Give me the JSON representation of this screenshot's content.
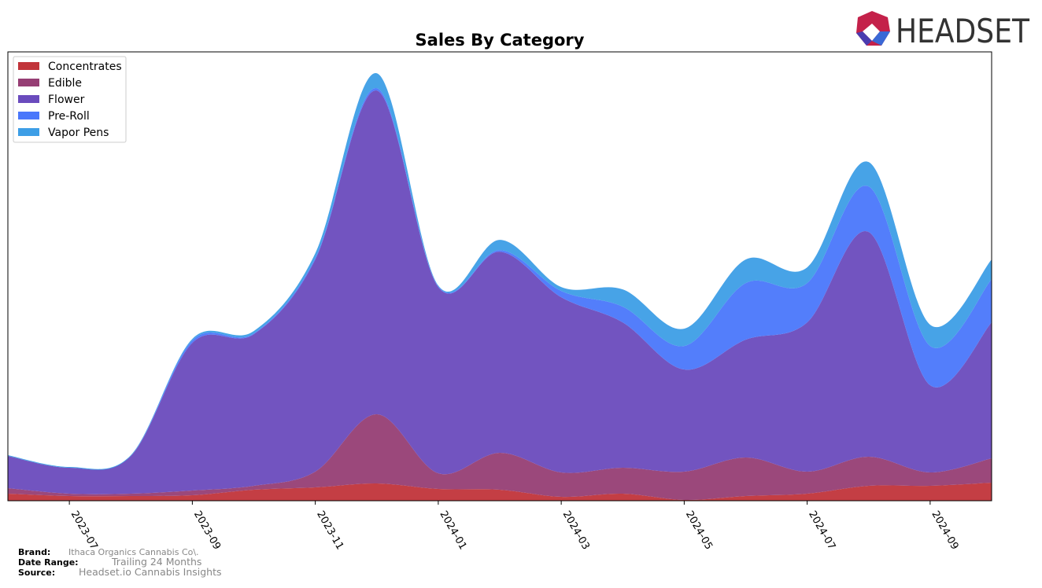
{
  "chart_data": {
    "type": "stacked-area",
    "title": "Sales By Category",
    "x": [
      "2023-06",
      "2023-07",
      "2023-08",
      "2023-09",
      "2023-10",
      "2023-11",
      "2023-12",
      "2024-01",
      "2024-02",
      "2024-03",
      "2024-04",
      "2024-05",
      "2024-06",
      "2024-07",
      "2024-08",
      "2024-09",
      "2024-10"
    ],
    "xticks": [
      "2023-07",
      "2023-09",
      "2023-11",
      "2024-01",
      "2024-03",
      "2024-05",
      "2024-07",
      "2024-09"
    ],
    "series": [
      {
        "name": "Concentrates",
        "color": "#c1343a",
        "values": [
          9,
          6,
          6,
          7,
          14,
          17,
          22,
          15,
          14,
          5,
          9,
          1,
          6,
          9,
          19,
          19,
          23
        ]
      },
      {
        "name": "Edible",
        "color": "#963e74",
        "values": [
          7,
          3,
          3,
          6,
          5,
          20,
          88,
          20,
          47,
          31,
          33,
          36,
          49,
          28,
          37,
          17,
          31
        ]
      },
      {
        "name": "Flower",
        "color": "#6a4bbd",
        "values": [
          41,
          33,
          48,
          188,
          193,
          270,
          412,
          237,
          256,
          223,
          185,
          130,
          150,
          190,
          286,
          111,
          173
        ]
      },
      {
        "name": "Pre-Roll",
        "color": "#4a77fb",
        "values": [
          0,
          0,
          0,
          3,
          1,
          2,
          3,
          1,
          2,
          8,
          20,
          30,
          72,
          50,
          58,
          50,
          55
        ]
      },
      {
        "name": "Vapor Pens",
        "color": "#3d9ee6",
        "values": [
          1,
          1,
          1,
          2,
          3,
          6,
          19,
          1,
          13,
          5,
          22,
          22,
          30,
          20,
          31,
          27,
          25
        ]
      }
    ],
    "legend_position": "upper left"
  },
  "footer": {
    "brand_label": "Brand:",
    "brand": "Ithaca Organics Cannabis Co\\.",
    "date_range_label": "Date Range:",
    "date_range": "Trailing 24 Months",
    "source_label": "Source:",
    "source": "Headset.io Cannabis Insights"
  },
  "logo": "HEADSET"
}
